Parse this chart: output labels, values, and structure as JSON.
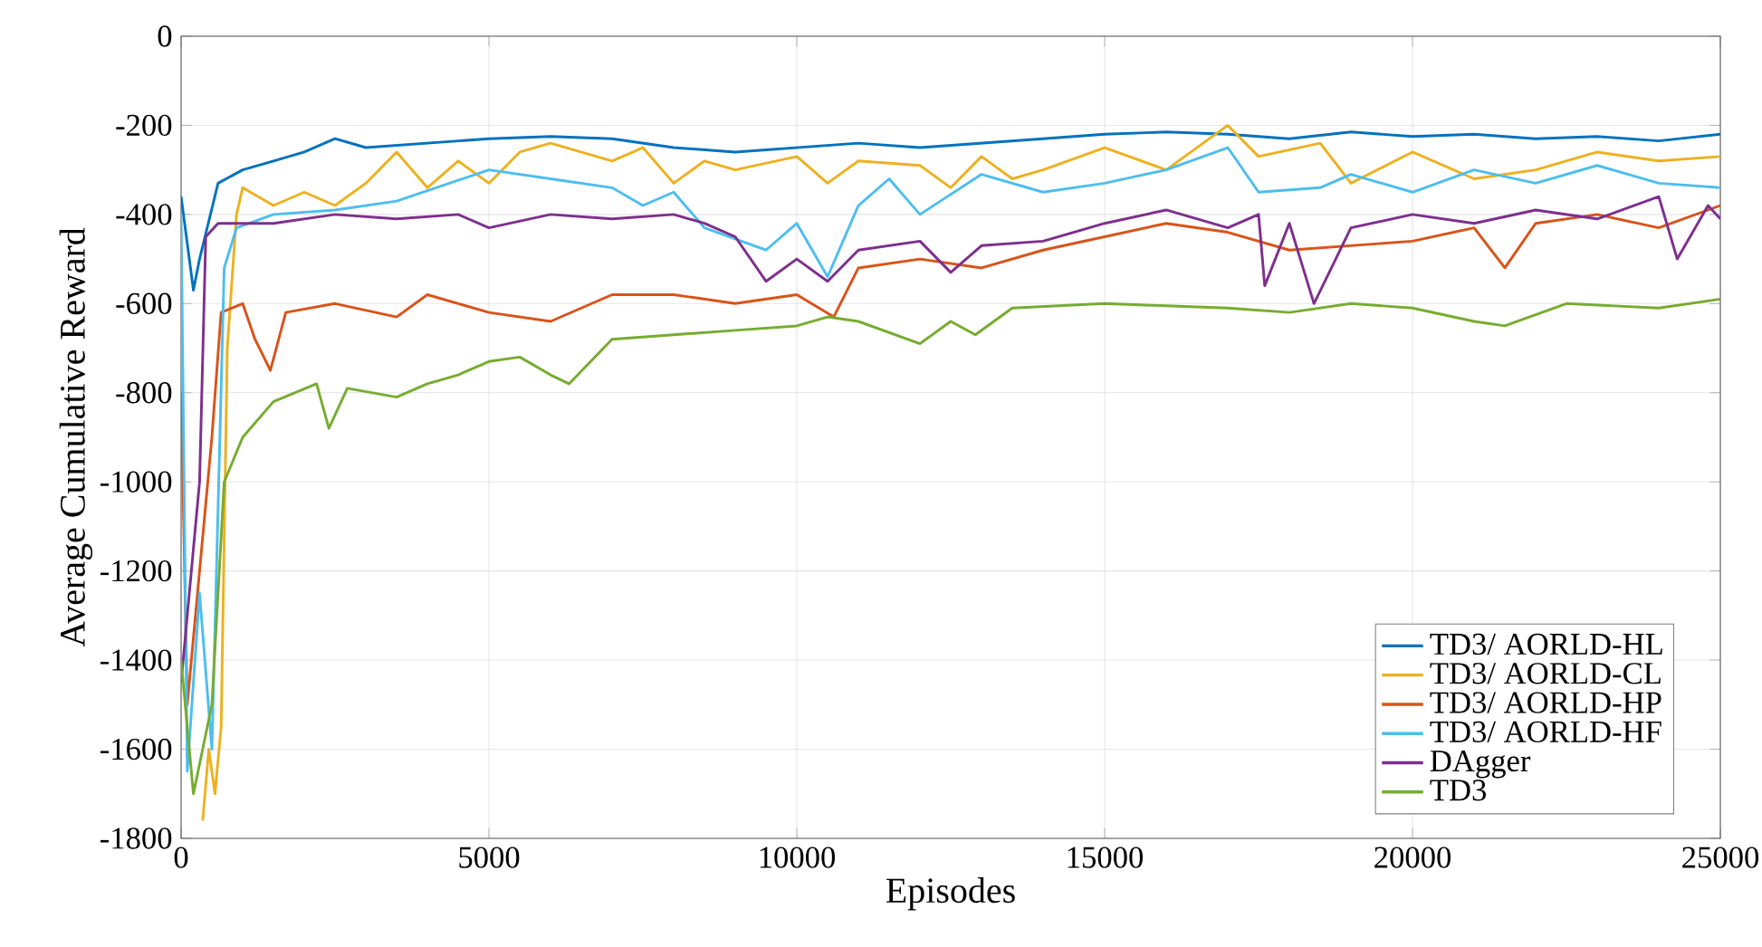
{
  "chart_data": {
    "type": "line",
    "xlabel": "Episodes",
    "ylabel": "Average Cumulative Reward",
    "xlim": [
      0,
      25000
    ],
    "ylim": [
      -1800,
      0
    ],
    "xticks": [
      0,
      5000,
      10000,
      15000,
      20000,
      25000
    ],
    "yticks": [
      {
        "value": -1800,
        "label": "-1800"
      },
      {
        "value": -1600,
        "label": "-1600"
      },
      {
        "value": -1400,
        "label": "-1400"
      },
      {
        "value": -1200,
        "label": "-1200"
      },
      {
        "value": -1000,
        "label": "-1000"
      },
      {
        "value": -800,
        "label": "-800"
      },
      {
        "value": -600,
        "label": "-600"
      },
      {
        "value": -400,
        "label": "-400"
      },
      {
        "value": -200,
        "label": "-200"
      },
      0
    ],
    "grid": true,
    "legend": "bottom right",
    "line_style": "solid",
    "marker": "none",
    "series": [
      {
        "name": "TD3/ AORLD-HL",
        "color": "#0072bd",
        "x": [
          0,
          200,
          300,
          600,
          1000,
          1500,
          2000,
          2500,
          3000,
          4000,
          5000,
          6000,
          7000,
          8000,
          9000,
          10000,
          11000,
          12000,
          13000,
          14000,
          15000,
          16000,
          17000,
          18000,
          19000,
          20000,
          21000,
          22000,
          23000,
          24000,
          25000
        ],
        "values": [
          -360,
          -570,
          -500,
          -330,
          -300,
          -280,
          -260,
          -230,
          -250,
          -240,
          -230,
          -225,
          -230,
          -250,
          -260,
          -250,
          -240,
          -250,
          -240,
          -230,
          -220,
          -215,
          -220,
          -230,
          -215,
          -225,
          -220,
          -230,
          -225,
          -235,
          -220
        ]
      },
      {
        "name": "TD3/ AORLD-CL",
        "color": "#edb120",
        "x": [
          350,
          450,
          550,
          650,
          750,
          900,
          1000,
          1500,
          2000,
          2500,
          3000,
          3500,
          4000,
          4500,
          5000,
          5500,
          6000,
          7000,
          7500,
          8000,
          8500,
          9000,
          10000,
          10500,
          11000,
          12000,
          12500,
          13000,
          13500,
          14000,
          15000,
          16000,
          17000,
          17500,
          18500,
          19000,
          20000,
          21000,
          22000,
          23000,
          24000,
          25000
        ],
        "values": [
          -1760,
          -1600,
          -1700,
          -1550,
          -700,
          -400,
          -340,
          -380,
          -350,
          -380,
          -330,
          -260,
          -340,
          -280,
          -330,
          -260,
          -240,
          -280,
          -250,
          -330,
          -280,
          -300,
          -270,
          -330,
          -280,
          -290,
          -340,
          -270,
          -320,
          -300,
          -250,
          -300,
          -200,
          -270,
          -240,
          -330,
          -260,
          -320,
          -300,
          -260,
          -280,
          -270
        ]
      },
      {
        "name": "TD3/ AORLD-HP",
        "color": "#d95319",
        "x": [
          0,
          100,
          300,
          500,
          650,
          1000,
          1200,
          1450,
          1700,
          2500,
          3500,
          4000,
          5000,
          6000,
          7000,
          8000,
          9000,
          10000,
          10600,
          11000,
          12000,
          13000,
          14000,
          15000,
          16000,
          17000,
          18000,
          19000,
          20000,
          21000,
          21500,
          22000,
          23000,
          24000,
          25000
        ],
        "values": [
          -800,
          -1500,
          -1200,
          -900,
          -620,
          -600,
          -680,
          -750,
          -620,
          -600,
          -630,
          -580,
          -620,
          -640,
          -580,
          -580,
          -600,
          -580,
          -630,
          -520,
          -500,
          -520,
          -480,
          -450,
          -420,
          -440,
          -480,
          -470,
          -460,
          -430,
          -520,
          -420,
          -400,
          -430,
          -380
        ]
      },
      {
        "name": "TD3/ AORLD-HF",
        "color": "#4dbeee",
        "x": [
          0,
          100,
          300,
          500,
          700,
          900,
          1500,
          2500,
          3500,
          5000,
          6000,
          7000,
          7500,
          8000,
          8500,
          9500,
          10000,
          10500,
          11000,
          11500,
          12000,
          13000,
          14000,
          15000,
          16000,
          17000,
          17500,
          18500,
          19000,
          20000,
          21000,
          22000,
          23000,
          24000,
          25000
        ],
        "values": [
          -400,
          -1650,
          -1250,
          -1600,
          -520,
          -430,
          -400,
          -390,
          -370,
          -300,
          -320,
          -340,
          -380,
          -350,
          -430,
          -480,
          -420,
          -540,
          -380,
          -320,
          -400,
          -310,
          -350,
          -330,
          -300,
          -250,
          -350,
          -340,
          -310,
          -350,
          -300,
          -330,
          -290,
          -330,
          -340
        ]
      },
      {
        "name": "DAgger",
        "color": "#7e2f8e",
        "x": [
          0,
          300,
          400,
          600,
          1500,
          2500,
          3500,
          4500,
          5000,
          6000,
          7000,
          8000,
          8500,
          9000,
          9500,
          10000,
          10500,
          11000,
          12000,
          12500,
          13000,
          14000,
          15000,
          16000,
          17000,
          17500,
          17600,
          18000,
          18400,
          19000,
          20000,
          21000,
          22000,
          23000,
          24000,
          24300,
          24800,
          25000
        ],
        "values": [
          -1450,
          -1000,
          -450,
          -420,
          -420,
          -400,
          -410,
          -400,
          -430,
          -400,
          -410,
          -400,
          -420,
          -450,
          -550,
          -500,
          -550,
          -480,
          -460,
          -530,
          -470,
          -460,
          -420,
          -390,
          -430,
          -400,
          -560,
          -420,
          -600,
          -430,
          -400,
          -420,
          -390,
          -410,
          -360,
          -500,
          -380,
          -410
        ]
      },
      {
        "name": "TD3",
        "color": "#77ac30",
        "x": [
          0,
          200,
          500,
          700,
          1000,
          1500,
          2200,
          2400,
          2700,
          3500,
          4000,
          4500,
          5000,
          5500,
          6000,
          6300,
          7000,
          8000,
          9000,
          10000,
          10500,
          11000,
          12000,
          12500,
          12900,
          13500,
          15000,
          16000,
          17000,
          18000,
          19000,
          20000,
          21000,
          21500,
          22500,
          24000,
          25000
        ],
        "values": [
          -1400,
          -1700,
          -1500,
          -1000,
          -900,
          -820,
          -780,
          -880,
          -790,
          -810,
          -780,
          -760,
          -730,
          -720,
          -760,
          -780,
          -680,
          -670,
          -660,
          -650,
          -630,
          -640,
          -690,
          -640,
          -670,
          -610,
          -600,
          -605,
          -610,
          -620,
          -600,
          -610,
          -640,
          -650,
          -600,
          -610,
          -590
        ]
      }
    ]
  }
}
